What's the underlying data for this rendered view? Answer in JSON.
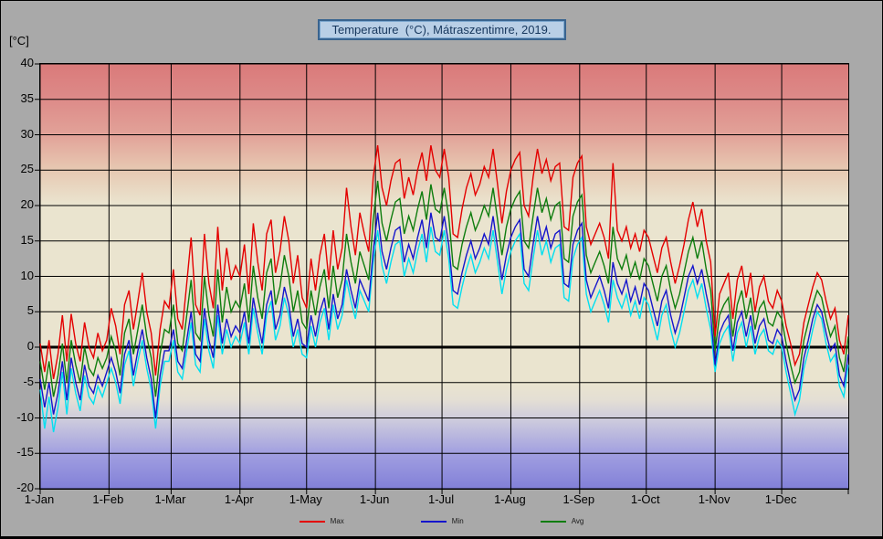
{
  "title": "Temperature  (°C), Mátraszentimre, 2019.",
  "y_axis_unit": "[°C]",
  "legend": {
    "items": [
      {
        "label": "Max",
        "color": "#e40000"
      },
      {
        "label": "Min",
        "color": "#1515cc"
      },
      {
        "label": "Avg",
        "color": "#0e7d0e"
      }
    ]
  },
  "colors": {
    "outer_background": "#a9a9a9",
    "plot_hot_top": "#da7a7a",
    "plot_neutral": "#eae4cf",
    "plot_cold_bottom": "#8280d8",
    "grid": "#000000",
    "title_box_background": "#b9cfe6",
    "title_box_border": "#39648f",
    "title_text": "#17375d"
  },
  "chart_data": {
    "type": "line",
    "title": "Temperature  (°C), Mátraszentimre, 2019.",
    "xlabel": "",
    "ylabel": "[°C]",
    "ylim": [
      -20,
      40
    ],
    "grid": true,
    "legend_position": "bottom",
    "y_ticks": [
      40,
      35,
      30,
      25,
      20,
      15,
      10,
      5,
      0,
      -5,
      -10,
      -15,
      -20
    ],
    "x_ticks": [
      {
        "day": 1,
        "label": "1-Jan"
      },
      {
        "day": 32,
        "label": "1-Feb"
      },
      {
        "day": 60,
        "label": "1-Mar"
      },
      {
        "day": 91,
        "label": "1-Apr"
      },
      {
        "day": 121,
        "label": "1-May"
      },
      {
        "day": 152,
        "label": "1-Jun"
      },
      {
        "day": 182,
        "label": "1-Jul"
      },
      {
        "day": 213,
        "label": "1-Aug"
      },
      {
        "day": 244,
        "label": "1-Sep"
      },
      {
        "day": 274,
        "label": "1-Oct"
      },
      {
        "day": 305,
        "label": "1-Nov"
      },
      {
        "day": 335,
        "label": "1-Dec"
      }
    ],
    "x_days": {
      "start": 1,
      "step": 2,
      "end": 365
    },
    "series": [
      {
        "name": "Max",
        "color": "#e40000",
        "values": [
          0.5,
          -3.5,
          1.0,
          -4.5,
          -1.0,
          4.5,
          -2.0,
          4.7,
          0.5,
          -2.0,
          3.5,
          0.0,
          -1.5,
          2.0,
          -0.5,
          1.0,
          5.5,
          3.0,
          -1.0,
          6.0,
          8.0,
          2.5,
          6.5,
          10.5,
          5.0,
          2.0,
          -4.0,
          2.5,
          6.5,
          5.5,
          11.0,
          4.0,
          2.5,
          9.0,
          15.5,
          6.0,
          4.5,
          16.0,
          9.0,
          5.5,
          17.0,
          8.0,
          14.0,
          9.5,
          11.5,
          10.0,
          14.5,
          7.5,
          17.5,
          12.0,
          8.0,
          16.0,
          18.0,
          10.5,
          13.5,
          18.5,
          15.0,
          9.0,
          13.0,
          7.0,
          5.5,
          12.5,
          8.0,
          13.0,
          16.0,
          9.5,
          16.5,
          11.0,
          14.0,
          22.5,
          17.0,
          13.0,
          19.0,
          16.0,
          13.5,
          24.0,
          28.5,
          22.5,
          20.0,
          23.5,
          26.0,
          26.5,
          21.0,
          24.0,
          21.5,
          25.0,
          27.5,
          23.5,
          28.5,
          25.0,
          24.0,
          28.0,
          24.0,
          16.0,
          15.5,
          19.5,
          22.5,
          24.5,
          21.5,
          23.0,
          25.5,
          24.0,
          28.0,
          23.0,
          17.5,
          22.0,
          25.0,
          26.5,
          27.5,
          20.0,
          18.5,
          24.0,
          28.0,
          24.5,
          26.5,
          23.5,
          25.5,
          26.0,
          17.0,
          16.5,
          24.0,
          26.0,
          27.0,
          17.0,
          14.5,
          16.0,
          17.5,
          15.5,
          12.5,
          26.0,
          16.5,
          15.0,
          17.0,
          14.0,
          16.0,
          13.5,
          16.5,
          15.5,
          13.0,
          10.5,
          14.0,
          15.5,
          12.0,
          9.0,
          11.5,
          14.5,
          18.0,
          20.5,
          17.0,
          19.5,
          15.0,
          12.0,
          1.5,
          7.5,
          9.0,
          10.5,
          4.0,
          9.5,
          11.5,
          7.0,
          10.5,
          5.0,
          8.5,
          10.0,
          6.5,
          5.5,
          8.0,
          6.5,
          3.0,
          0.5,
          -2.5,
          -1.0,
          3.5,
          6.0,
          8.5,
          10.5,
          9.5,
          6.5,
          4.0,
          5.5,
          1.0,
          -1.0,
          4.5
        ]
      },
      {
        "name": "Min",
        "color": "#1515cc",
        "values": [
          -4.5,
          -8.5,
          -5.0,
          -9.5,
          -6.5,
          -2.0,
          -7.5,
          -1.5,
          -5.0,
          -7.5,
          -2.5,
          -5.5,
          -6.5,
          -4.0,
          -5.5,
          -3.5,
          -1.5,
          -3.5,
          -6.5,
          -1.0,
          1.0,
          -4.0,
          -0.5,
          2.5,
          -1.5,
          -4.5,
          -10.0,
          -4.0,
          -0.5,
          -0.5,
          2.5,
          -2.0,
          -3.0,
          1.0,
          5.0,
          -1.0,
          -2.0,
          5.5,
          1.0,
          -1.5,
          6.0,
          0.5,
          4.0,
          1.5,
          3.0,
          2.0,
          5.0,
          0.5,
          7.0,
          3.5,
          0.5,
          6.0,
          8.0,
          2.5,
          4.5,
          8.5,
          6.0,
          1.5,
          4.0,
          0.5,
          0.0,
          4.5,
          1.5,
          5.0,
          7.0,
          2.5,
          7.5,
          4.0,
          6.0,
          11.0,
          8.0,
          5.5,
          9.5,
          8.0,
          6.5,
          13.5,
          19.0,
          13.5,
          11.0,
          14.0,
          16.5,
          17.0,
          12.0,
          14.5,
          12.5,
          15.5,
          18.0,
          14.0,
          19.0,
          15.5,
          15.0,
          18.5,
          14.5,
          8.0,
          7.5,
          10.5,
          13.0,
          15.0,
          12.5,
          14.0,
          16.0,
          14.5,
          18.5,
          14.0,
          9.5,
          13.0,
          15.5,
          17.0,
          18.0,
          11.0,
          10.0,
          14.5,
          18.5,
          15.0,
          17.0,
          14.0,
          16.0,
          16.5,
          9.0,
          8.5,
          14.5,
          16.5,
          17.5,
          9.5,
          7.0,
          8.5,
          10.0,
          8.0,
          5.5,
          12.0,
          9.0,
          7.5,
          9.5,
          6.5,
          8.5,
          6.0,
          9.0,
          8.0,
          5.5,
          3.0,
          6.5,
          8.0,
          4.5,
          2.0,
          4.0,
          7.0,
          10.0,
          11.5,
          9.0,
          11.0,
          7.5,
          4.5,
          -2.5,
          2.0,
          3.5,
          4.5,
          -0.5,
          3.5,
          5.0,
          1.5,
          4.5,
          0.5,
          3.0,
          4.0,
          1.0,
          0.5,
          2.5,
          1.5,
          -2.0,
          -5.0,
          -7.5,
          -6.0,
          -1.5,
          1.0,
          4.0,
          6.0,
          5.0,
          2.0,
          -0.5,
          0.5,
          -4.0,
          -5.5,
          -1.0
        ]
      },
      {
        "name": "Avg",
        "color": "#0e7d0e",
        "values": [
          -2.0,
          -6.0,
          -2.0,
          -7.0,
          -4.0,
          0.5,
          -5.0,
          1.0,
          -2.5,
          -5.0,
          0.0,
          -3.0,
          -4.0,
          -1.5,
          -3.0,
          -1.5,
          1.5,
          -0.5,
          -4.0,
          2.0,
          4.0,
          -1.0,
          2.5,
          6.0,
          1.5,
          -1.5,
          -7.0,
          -1.0,
          2.5,
          2.0,
          6.0,
          0.5,
          -0.5,
          4.5,
          9.5,
          2.0,
          1.0,
          10.0,
          4.5,
          1.5,
          11.0,
          3.5,
          8.5,
          5.0,
          6.5,
          5.5,
          9.0,
          3.5,
          11.5,
          7.0,
          4.0,
          10.5,
          12.5,
          6.0,
          8.5,
          13.0,
          10.0,
          5.0,
          8.0,
          3.5,
          2.5,
          8.0,
          4.5,
          8.5,
          11.0,
          5.5,
          11.5,
          7.0,
          9.5,
          16.0,
          12.0,
          9.0,
          13.5,
          11.5,
          9.5,
          18.0,
          23.5,
          17.5,
          15.0,
          18.0,
          20.5,
          21.0,
          16.0,
          18.5,
          16.5,
          19.5,
          22.0,
          18.0,
          23.0,
          19.5,
          19.0,
          22.5,
          18.5,
          11.5,
          11.0,
          14.5,
          17.0,
          19.0,
          16.5,
          18.0,
          20.0,
          18.5,
          22.5,
          18.0,
          13.0,
          17.0,
          19.5,
          21.0,
          22.0,
          15.0,
          14.0,
          18.5,
          22.5,
          19.0,
          21.0,
          18.0,
          20.0,
          20.5,
          12.5,
          12.0,
          18.5,
          20.5,
          21.5,
          13.0,
          10.5,
          12.0,
          13.5,
          11.5,
          9.0,
          17.0,
          12.5,
          11.0,
          13.0,
          10.0,
          12.0,
          9.5,
          12.5,
          11.5,
          9.0,
          6.5,
          10.0,
          11.5,
          8.0,
          5.5,
          7.5,
          10.5,
          13.5,
          15.5,
          12.5,
          15.0,
          11.0,
          8.0,
          -0.5,
          4.5,
          6.0,
          7.0,
          1.5,
          6.0,
          8.0,
          4.0,
          7.0,
          2.5,
          5.5,
          6.5,
          3.5,
          3.0,
          5.0,
          4.0,
          0.5,
          -2.5,
          -5.0,
          -3.5,
          1.0,
          3.5,
          6.0,
          8.0,
          7.0,
          4.0,
          1.5,
          3.0,
          -1.5,
          -3.5,
          1.5
        ]
      },
      {
        "name": "",
        "color": "#00dff0",
        "values": [
          -6.0,
          -11.5,
          -7.0,
          -12.0,
          -8.5,
          -3.5,
          -9.5,
          -3.0,
          -6.5,
          -9.0,
          -4.0,
          -7.0,
          -8.0,
          -5.5,
          -7.0,
          -5.0,
          -3.0,
          -5.0,
          -8.0,
          -2.5,
          -0.5,
          -5.5,
          -2.0,
          1.0,
          -3.0,
          -6.0,
          -11.5,
          -5.5,
          -2.0,
          -2.0,
          1.0,
          -3.5,
          -4.5,
          -0.5,
          3.5,
          -2.5,
          -3.5,
          4.0,
          -0.5,
          -3.0,
          4.5,
          -1.0,
          2.5,
          0.0,
          1.5,
          0.5,
          3.5,
          -1.0,
          5.5,
          2.0,
          -1.0,
          4.5,
          6.5,
          1.0,
          3.0,
          7.0,
          4.5,
          0.0,
          2.5,
          -1.0,
          -1.5,
          3.0,
          0.0,
          3.5,
          5.5,
          1.0,
          6.0,
          2.5,
          4.5,
          9.5,
          6.5,
          4.0,
          8.0,
          6.5,
          5.0,
          12.0,
          16.5,
          11.5,
          9.0,
          12.0,
          14.5,
          15.0,
          10.0,
          12.5,
          10.5,
          13.5,
          16.0,
          12.0,
          17.0,
          13.5,
          13.0,
          16.5,
          12.5,
          6.0,
          5.5,
          8.5,
          11.0,
          13.0,
          10.5,
          12.0,
          14.0,
          12.5,
          16.5,
          12.0,
          7.5,
          11.0,
          13.5,
          15.0,
          16.0,
          9.0,
          8.0,
          12.5,
          16.5,
          13.0,
          15.0,
          12.0,
          14.0,
          14.5,
          7.0,
          6.5,
          12.5,
          14.5,
          15.5,
          7.5,
          5.0,
          6.5,
          8.0,
          6.0,
          3.5,
          9.5,
          7.0,
          5.5,
          7.5,
          4.5,
          6.5,
          4.0,
          7.0,
          6.0,
          3.5,
          1.0,
          4.5,
          6.0,
          2.5,
          0.0,
          2.0,
          5.0,
          8.0,
          9.5,
          7.0,
          9.0,
          5.5,
          2.5,
          -3.5,
          0.5,
          2.0,
          3.0,
          -2.0,
          2.0,
          3.5,
          0.0,
          3.0,
          -1.0,
          1.5,
          2.5,
          -0.5,
          -1.0,
          1.0,
          0.0,
          -3.5,
          -6.5,
          -9.5,
          -7.5,
          -3.0,
          -0.5,
          2.5,
          5.0,
          4.0,
          0.5,
          -2.0,
          -1.0,
          -5.5,
          -7.0,
          -2.5
        ]
      }
    ]
  }
}
